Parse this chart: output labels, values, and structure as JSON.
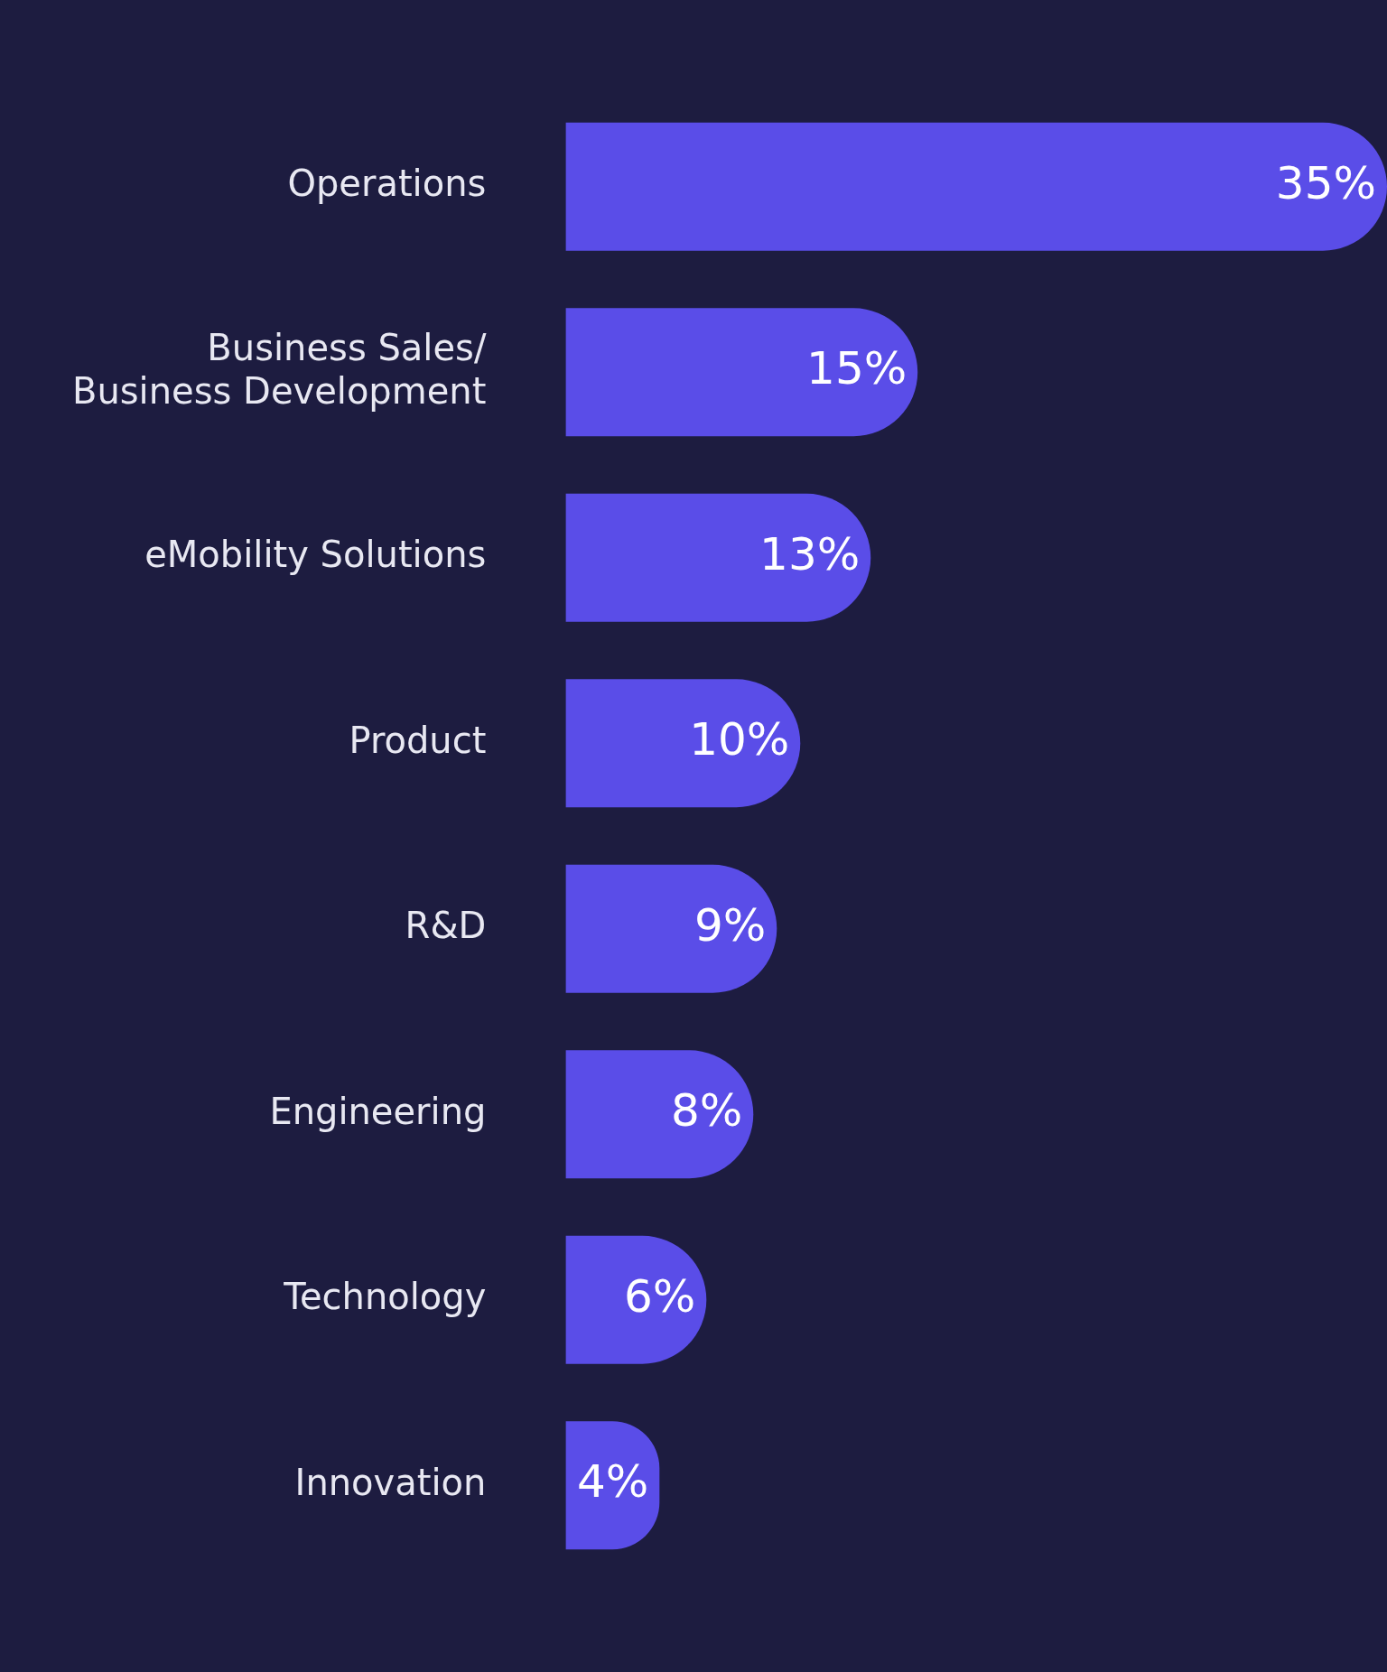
{
  "chart_data": {
    "type": "bar",
    "orientation": "horizontal",
    "categories": [
      "Operations",
      "Business Sales/\nBusiness Development",
      "eMobility Solutions",
      "Product",
      "R&D",
      "Engineering",
      "Technology",
      "Innovation"
    ],
    "values": [
      35,
      15,
      13,
      10,
      9,
      8,
      6,
      4
    ],
    "value_labels": [
      "35%",
      "15%",
      "13%",
      "10%",
      "9%",
      "8%",
      "6%",
      "4%"
    ],
    "color": "#5a4de8",
    "legend": false
  }
}
